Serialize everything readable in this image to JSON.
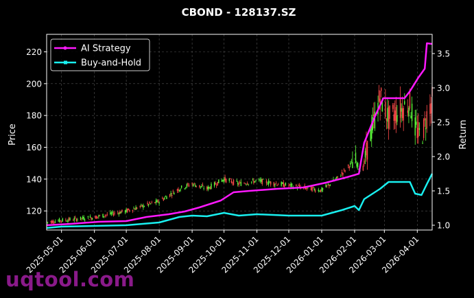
{
  "chart_data": {
    "type": "line",
    "title": "CBOND - 128137.SZ",
    "ylabel": "Price",
    "y2label": "Return",
    "ylim": [
      108,
      231
    ],
    "y2lim": [
      0.93,
      3.78
    ],
    "price_ticks": [
      120,
      140,
      160,
      180,
      200,
      220
    ],
    "return_ticks": [
      "1.0",
      "1.5",
      "2.0",
      "2.5",
      "3.0",
      "3.5"
    ],
    "date_ticks": [
      "2025-05-01",
      "2025-06-01",
      "2025-07-01",
      "2025-08-01",
      "2025-09-01",
      "2025-10-01",
      "2025-11-01",
      "2025-12-01",
      "2026-01-01",
      "2026-02-01",
      "2026-03-01",
      "2026-04-01"
    ],
    "date_range": [
      "2025-04-17",
      "2026-04-15"
    ],
    "grid": true,
    "legend_position": "top-left",
    "series": [
      {
        "name": "AI Strategy",
        "color": "#ff19ff",
        "axis": "return",
        "points": [
          [
            "2025-04-17",
            1.0
          ],
          [
            "2025-05-10",
            1.02
          ],
          [
            "2025-06-05",
            1.05
          ],
          [
            "2025-07-01",
            1.06
          ],
          [
            "2025-07-20",
            1.12
          ],
          [
            "2025-08-10",
            1.16
          ],
          [
            "2025-08-25",
            1.2
          ],
          [
            "2025-09-08",
            1.26
          ],
          [
            "2025-09-28",
            1.36
          ],
          [
            "2025-10-10",
            1.48
          ],
          [
            "2025-10-25",
            1.5
          ],
          [
            "2025-11-20",
            1.53
          ],
          [
            "2025-12-15",
            1.55
          ],
          [
            "2026-01-05",
            1.62
          ],
          [
            "2026-01-25",
            1.7
          ],
          [
            "2026-02-05",
            1.75
          ],
          [
            "2026-02-10",
            2.2
          ],
          [
            "2026-02-20",
            2.58
          ],
          [
            "2026-02-28",
            2.85
          ],
          [
            "2026-03-20",
            2.85
          ],
          [
            "2026-03-25",
            2.95
          ],
          [
            "2026-04-02",
            3.15
          ],
          [
            "2026-04-08",
            3.28
          ],
          [
            "2026-04-10",
            3.65
          ],
          [
            "2026-04-15",
            3.64
          ]
        ]
      },
      {
        "name": "Buy-and-Hold",
        "color": "#19f0f0",
        "axis": "return",
        "points": [
          [
            "2025-04-17",
            0.96
          ],
          [
            "2025-05-01",
            0.98
          ],
          [
            "2025-06-01",
            0.99
          ],
          [
            "2025-07-01",
            1.0
          ],
          [
            "2025-08-01",
            1.04
          ],
          [
            "2025-08-20",
            1.12
          ],
          [
            "2025-09-01",
            1.14
          ],
          [
            "2025-09-15",
            1.13
          ],
          [
            "2025-10-01",
            1.18
          ],
          [
            "2025-10-15",
            1.14
          ],
          [
            "2025-11-01",
            1.16
          ],
          [
            "2025-12-01",
            1.14
          ],
          [
            "2026-01-01",
            1.14
          ],
          [
            "2026-01-20",
            1.22
          ],
          [
            "2026-02-01",
            1.28
          ],
          [
            "2026-02-05",
            1.22
          ],
          [
            "2026-02-10",
            1.38
          ],
          [
            "2026-02-25",
            1.53
          ],
          [
            "2026-03-05",
            1.63
          ],
          [
            "2026-03-25",
            1.63
          ],
          [
            "2026-03-30",
            1.46
          ],
          [
            "2026-04-05",
            1.44
          ],
          [
            "2026-04-10",
            1.6
          ],
          [
            "2026-04-15",
            1.75
          ]
        ]
      }
    ],
    "candles": {
      "axis": "price",
      "up_color": "#5dff3c",
      "down_color": "#ff4a4a",
      "trend": [
        [
          "2025-04-17",
          113
        ],
        [
          "2025-05-01",
          114
        ],
        [
          "2025-06-01",
          116
        ],
        [
          "2025-07-01",
          120
        ],
        [
          "2025-08-01",
          126
        ],
        [
          "2025-08-20",
          134
        ],
        [
          "2025-09-01",
          137
        ],
        [
          "2025-09-15",
          134
        ],
        [
          "2025-10-01",
          140
        ],
        [
          "2025-10-15",
          137
        ],
        [
          "2025-11-01",
          139
        ],
        [
          "2025-12-01",
          136
        ],
        [
          "2026-01-01",
          133
        ],
        [
          "2026-01-15",
          140
        ],
        [
          "2026-02-01",
          152
        ],
        [
          "2026-02-08",
          144
        ],
        [
          "2026-02-15",
          165
        ],
        [
          "2026-02-25",
          192
        ],
        [
          "2026-03-05",
          178
        ],
        [
          "2026-03-25",
          188
        ],
        [
          "2026-03-30",
          172
        ],
        [
          "2026-04-05",
          166
        ],
        [
          "2026-04-10",
          180
        ],
        [
          "2026-04-15",
          190
        ]
      ]
    }
  },
  "watermark": "uqtool.com"
}
